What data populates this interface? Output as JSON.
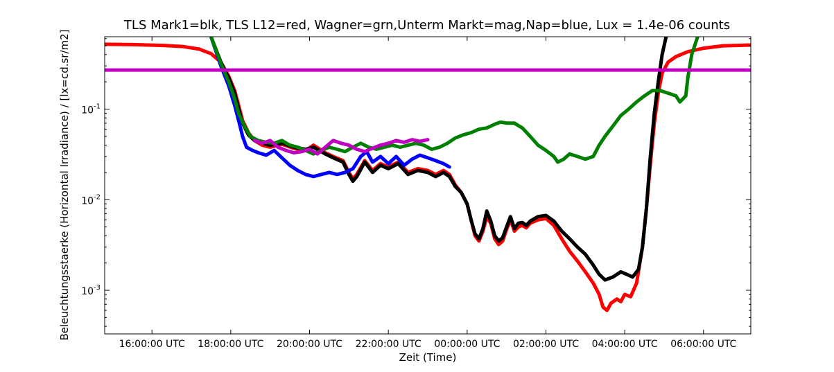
{
  "chart_data": {
    "type": "line",
    "title": "TLS Mark1=blk, TLS L12=red, Wagner=grn,Unterm Markt=mag,Nap=blue, Lux = 1.4e-06 counts",
    "xlabel": "Zeit (Time)",
    "ylabel": "Beleuchtungsstaerke (Horizontal Irradiance) / [lx=cd.sr/m2]",
    "yscale": "log",
    "xlim": [
      14.8,
      31.2
    ],
    "ylim": [
      0.00033,
      0.63
    ],
    "x_ticks": [
      {
        "x": 16,
        "label": "16:00:00 UTC"
      },
      {
        "x": 18,
        "label": "18:00:00 UTC"
      },
      {
        "x": 20,
        "label": "20:00:00 UTC"
      },
      {
        "x": 22,
        "label": "22:00:00 UTC"
      },
      {
        "x": 24,
        "label": "00:00:00 UTC"
      },
      {
        "x": 26,
        "label": "02:00:00 UTC"
      },
      {
        "x": 28,
        "label": "04:00:00 UTC"
      },
      {
        "x": 30,
        "label": "06:00:00 UTC"
      }
    ],
    "y_ticks": [
      {
        "y": 0.001,
        "base": "10",
        "exp": "-3"
      },
      {
        "y": 0.01,
        "base": "10",
        "exp": "-2"
      },
      {
        "y": 0.1,
        "base": "10",
        "exp": "-1"
      }
    ],
    "grid": false,
    "legend": "in title",
    "series": [
      {
        "color": "#ff0000",
        "points": [
          [
            14.8,
            0.52
          ],
          [
            15.5,
            0.515
          ],
          [
            16.3,
            0.505
          ],
          [
            16.8,
            0.49
          ],
          [
            17.2,
            0.46
          ],
          [
            17.5,
            0.41
          ],
          [
            17.75,
            0.33
          ],
          [
            17.95,
            0.23
          ],
          [
            18.1,
            0.16
          ],
          [
            18.2,
            0.11
          ],
          [
            18.3,
            0.075
          ],
          [
            18.45,
            0.055
          ],
          [
            18.6,
            0.045
          ],
          [
            18.8,
            0.04
          ],
          [
            19.0,
            0.038
          ],
          [
            19.3,
            0.041
          ],
          [
            19.6,
            0.037
          ],
          [
            19.9,
            0.035
          ],
          [
            20.1,
            0.04
          ],
          [
            20.4,
            0.033
          ],
          [
            20.6,
            0.03
          ],
          [
            20.85,
            0.027
          ],
          [
            21.0,
            0.02
          ],
          [
            21.1,
            0.017
          ],
          [
            21.2,
            0.019
          ],
          [
            21.4,
            0.027
          ],
          [
            21.6,
            0.021
          ],
          [
            21.8,
            0.025
          ],
          [
            22.0,
            0.023
          ],
          [
            22.25,
            0.026
          ],
          [
            22.5,
            0.02
          ],
          [
            22.75,
            0.022
          ],
          [
            23.0,
            0.021
          ],
          [
            23.2,
            0.019
          ],
          [
            23.4,
            0.021
          ],
          [
            23.55,
            0.019
          ],
          [
            23.7,
            0.0145
          ],
          [
            23.85,
            0.012
          ],
          [
            24.0,
            0.009
          ],
          [
            24.1,
            0.006
          ],
          [
            24.2,
            0.004
          ],
          [
            24.3,
            0.0035
          ],
          [
            24.4,
            0.0045
          ],
          [
            24.5,
            0.0065
          ],
          [
            24.6,
            0.0055
          ],
          [
            24.7,
            0.0037
          ],
          [
            24.8,
            0.0032
          ],
          [
            24.9,
            0.0035
          ],
          [
            25.0,
            0.0047
          ],
          [
            25.1,
            0.006
          ],
          [
            25.2,
            0.0045
          ],
          [
            25.3,
            0.005
          ],
          [
            25.4,
            0.0052
          ],
          [
            25.5,
            0.0049
          ],
          [
            25.6,
            0.0055
          ],
          [
            25.8,
            0.006
          ],
          [
            26.0,
            0.0062
          ],
          [
            26.2,
            0.0052
          ],
          [
            26.4,
            0.0037
          ],
          [
            26.6,
            0.0027
          ],
          [
            26.8,
            0.0021
          ],
          [
            27.0,
            0.0016
          ],
          [
            27.2,
            0.0012
          ],
          [
            27.35,
            0.0009
          ],
          [
            27.45,
            0.00065
          ],
          [
            27.55,
            0.0006
          ],
          [
            27.65,
            0.00072
          ],
          [
            27.8,
            0.0008
          ],
          [
            27.9,
            0.00075
          ],
          [
            28.0,
            0.0009
          ],
          [
            28.15,
            0.00085
          ],
          [
            28.3,
            0.0012
          ],
          [
            28.45,
            0.003
          ],
          [
            28.55,
            0.008
          ],
          [
            28.65,
            0.025
          ],
          [
            28.75,
            0.07
          ],
          [
            28.85,
            0.15
          ],
          [
            28.95,
            0.25
          ],
          [
            29.1,
            0.33
          ],
          [
            29.3,
            0.38
          ],
          [
            29.6,
            0.43
          ],
          [
            30.0,
            0.47
          ],
          [
            30.5,
            0.5
          ],
          [
            31.2,
            0.51
          ]
        ]
      },
      {
        "color": "#000000",
        "points": [
          [
            17.5,
            0.63
          ],
          [
            17.75,
            0.33
          ],
          [
            17.95,
            0.22
          ],
          [
            18.1,
            0.15
          ],
          [
            18.2,
            0.1
          ],
          [
            18.3,
            0.07
          ],
          [
            18.45,
            0.052
          ],
          [
            18.6,
            0.045
          ],
          [
            18.8,
            0.042
          ],
          [
            19.0,
            0.04
          ],
          [
            19.3,
            0.042
          ],
          [
            19.6,
            0.038
          ],
          [
            19.9,
            0.036
          ],
          [
            20.1,
            0.038
          ],
          [
            20.4,
            0.032
          ],
          [
            20.6,
            0.029
          ],
          [
            20.85,
            0.026
          ],
          [
            21.0,
            0.019
          ],
          [
            21.1,
            0.016
          ],
          [
            21.2,
            0.018
          ],
          [
            21.4,
            0.026
          ],
          [
            21.6,
            0.02
          ],
          [
            21.8,
            0.024
          ],
          [
            22.0,
            0.022
          ],
          [
            22.25,
            0.025
          ],
          [
            22.5,
            0.019
          ],
          [
            22.75,
            0.021
          ],
          [
            23.0,
            0.02
          ],
          [
            23.2,
            0.018
          ],
          [
            23.4,
            0.02
          ],
          [
            23.55,
            0.018
          ],
          [
            23.7,
            0.014
          ],
          [
            23.85,
            0.012
          ],
          [
            24.0,
            0.009
          ],
          [
            24.1,
            0.006
          ],
          [
            24.2,
            0.0042
          ],
          [
            24.3,
            0.0037
          ],
          [
            24.4,
            0.0048
          ],
          [
            24.5,
            0.0075
          ],
          [
            24.6,
            0.0058
          ],
          [
            24.7,
            0.004
          ],
          [
            24.8,
            0.0035
          ],
          [
            24.9,
            0.0038
          ],
          [
            25.0,
            0.005
          ],
          [
            25.1,
            0.0065
          ],
          [
            25.2,
            0.0048
          ],
          [
            25.3,
            0.0055
          ],
          [
            25.4,
            0.0056
          ],
          [
            25.5,
            0.0052
          ],
          [
            25.6,
            0.0058
          ],
          [
            25.8,
            0.0065
          ],
          [
            26.0,
            0.0067
          ],
          [
            26.2,
            0.0058
          ],
          [
            26.4,
            0.0045
          ],
          [
            26.6,
            0.0037
          ],
          [
            26.8,
            0.003
          ],
          [
            27.0,
            0.0025
          ],
          [
            27.2,
            0.0019
          ],
          [
            27.35,
            0.0015
          ],
          [
            27.5,
            0.0013
          ],
          [
            27.7,
            0.0014
          ],
          [
            27.9,
            0.0016
          ],
          [
            28.05,
            0.0015
          ],
          [
            28.2,
            0.0014
          ],
          [
            28.35,
            0.0017
          ],
          [
            28.45,
            0.003
          ],
          [
            28.55,
            0.008
          ],
          [
            28.65,
            0.03
          ],
          [
            28.75,
            0.09
          ],
          [
            28.85,
            0.2
          ],
          [
            28.95,
            0.4
          ],
          [
            29.05,
            0.63
          ]
        ]
      },
      {
        "color": "#0000ff",
        "points": [
          [
            17.5,
            0.63
          ],
          [
            17.75,
            0.3
          ],
          [
            17.95,
            0.18
          ],
          [
            18.1,
            0.11
          ],
          [
            18.2,
            0.075
          ],
          [
            18.3,
            0.05
          ],
          [
            18.4,
            0.038
          ],
          [
            18.55,
            0.035
          ],
          [
            18.7,
            0.033
          ],
          [
            18.9,
            0.031
          ],
          [
            19.1,
            0.035
          ],
          [
            19.3,
            0.029
          ],
          [
            19.5,
            0.024
          ],
          [
            19.7,
            0.021
          ],
          [
            19.9,
            0.019
          ],
          [
            20.1,
            0.018
          ],
          [
            20.3,
            0.019
          ],
          [
            20.5,
            0.02
          ],
          [
            20.7,
            0.019
          ],
          [
            20.9,
            0.02
          ],
          [
            21.1,
            0.022
          ],
          [
            21.3,
            0.03
          ],
          [
            21.45,
            0.034
          ],
          [
            21.6,
            0.026
          ],
          [
            21.8,
            0.03
          ],
          [
            22.0,
            0.025
          ],
          [
            22.2,
            0.03
          ],
          [
            22.4,
            0.024
          ],
          [
            22.6,
            0.028
          ],
          [
            22.8,
            0.031
          ],
          [
            23.0,
            0.029
          ],
          [
            23.2,
            0.027
          ],
          [
            23.4,
            0.025
          ],
          [
            23.55,
            0.023
          ]
        ]
      },
      {
        "color": "#008000",
        "points": [
          [
            17.5,
            0.63
          ],
          [
            17.75,
            0.32
          ],
          [
            17.95,
            0.2
          ],
          [
            18.1,
            0.13
          ],
          [
            18.2,
            0.09
          ],
          [
            18.35,
            0.065
          ],
          [
            18.5,
            0.05
          ],
          [
            18.7,
            0.045
          ],
          [
            18.9,
            0.043
          ],
          [
            19.1,
            0.042
          ],
          [
            19.3,
            0.045
          ],
          [
            19.5,
            0.04
          ],
          [
            19.7,
            0.038
          ],
          [
            19.9,
            0.035
          ],
          [
            20.1,
            0.032
          ],
          [
            20.3,
            0.035
          ],
          [
            20.5,
            0.038
          ],
          [
            20.7,
            0.036
          ],
          [
            20.9,
            0.034
          ],
          [
            21.1,
            0.038
          ],
          [
            21.3,
            0.042
          ],
          [
            21.5,
            0.038
          ],
          [
            21.7,
            0.036
          ],
          [
            21.9,
            0.038
          ],
          [
            22.1,
            0.04
          ],
          [
            22.3,
            0.038
          ],
          [
            22.5,
            0.04
          ],
          [
            22.7,
            0.042
          ],
          [
            22.9,
            0.04
          ],
          [
            23.1,
            0.036
          ],
          [
            23.3,
            0.038
          ],
          [
            23.5,
            0.042
          ],
          [
            23.7,
            0.048
          ],
          [
            23.9,
            0.052
          ],
          [
            24.1,
            0.055
          ],
          [
            24.3,
            0.06
          ],
          [
            24.5,
            0.062
          ],
          [
            24.7,
            0.068
          ],
          [
            24.85,
            0.072
          ],
          [
            25.0,
            0.07
          ],
          [
            25.2,
            0.07
          ],
          [
            25.4,
            0.062
          ],
          [
            25.6,
            0.05
          ],
          [
            25.8,
            0.04
          ],
          [
            26.0,
            0.035
          ],
          [
            26.2,
            0.03
          ],
          [
            26.3,
            0.026
          ],
          [
            26.45,
            0.028
          ],
          [
            26.6,
            0.032
          ],
          [
            26.8,
            0.03
          ],
          [
            27.0,
            0.028
          ],
          [
            27.2,
            0.03
          ],
          [
            27.35,
            0.04
          ],
          [
            27.5,
            0.05
          ],
          [
            27.7,
            0.065
          ],
          [
            27.9,
            0.085
          ],
          [
            28.1,
            0.1
          ],
          [
            28.3,
            0.12
          ],
          [
            28.5,
            0.14
          ],
          [
            28.7,
            0.16
          ],
          [
            28.9,
            0.16
          ],
          [
            29.1,
            0.15
          ],
          [
            29.3,
            0.14
          ],
          [
            29.4,
            0.12
          ],
          [
            29.55,
            0.14
          ],
          [
            29.6,
            0.22
          ],
          [
            29.7,
            0.4
          ],
          [
            29.85,
            0.63
          ]
        ]
      },
      {
        "color": "#c000c0",
        "points": [
          [
            18.6,
            0.045
          ],
          [
            18.8,
            0.042
          ],
          [
            19.0,
            0.045
          ],
          [
            19.2,
            0.038
          ],
          [
            19.4,
            0.035
          ],
          [
            19.6,
            0.033
          ],
          [
            19.8,
            0.034
          ],
          [
            20.0,
            0.036
          ],
          [
            20.2,
            0.032
          ],
          [
            20.4,
            0.038
          ],
          [
            20.6,
            0.045
          ],
          [
            20.8,
            0.042
          ],
          [
            21.0,
            0.04
          ],
          [
            21.2,
            0.036
          ],
          [
            21.4,
            0.034
          ],
          [
            21.6,
            0.037
          ],
          [
            21.8,
            0.04
          ],
          [
            22.0,
            0.042
          ],
          [
            22.2,
            0.045
          ],
          [
            22.4,
            0.043
          ],
          [
            22.6,
            0.046
          ],
          [
            22.8,
            0.044
          ],
          [
            23.0,
            0.046
          ]
        ]
      },
      {
        "color": "#c000c0",
        "points": [
          [
            14.8,
            0.27
          ],
          [
            31.2,
            0.27
          ]
        ]
      }
    ]
  }
}
